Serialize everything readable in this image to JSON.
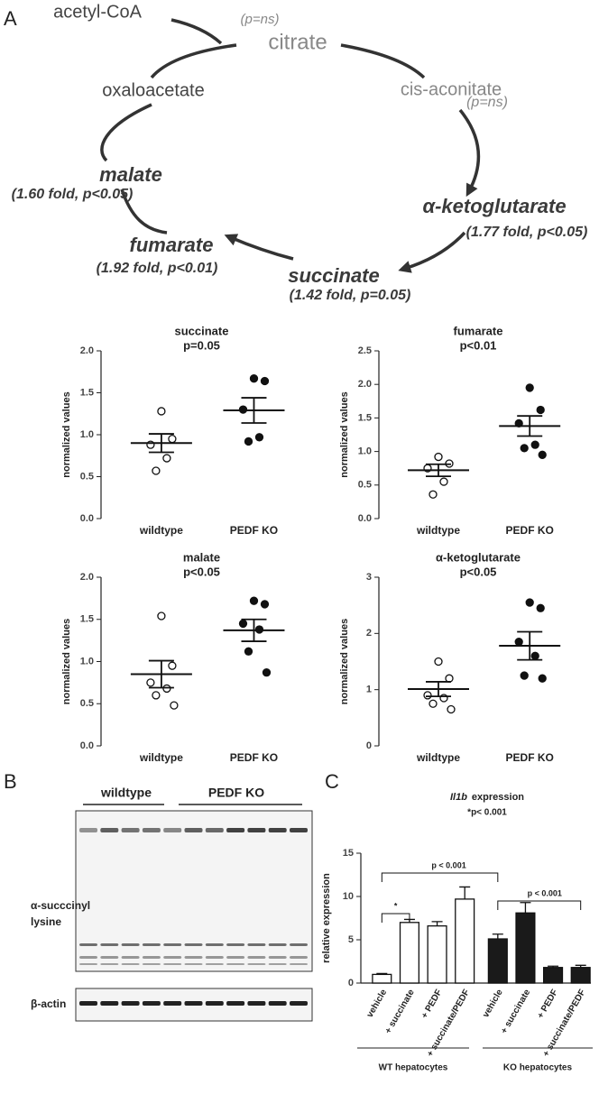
{
  "panel_labels": [
    "A",
    "B",
    "C"
  ],
  "diagram": {
    "acetyl_coa": "acetyl-CoA",
    "citrate_note": "(p=ns)",
    "citrate": "citrate",
    "cis_aconitate": "cis-aconitate",
    "cis_aconitate_note": "(p=ns)",
    "oxaloacetate": "oxaloacetate",
    "malate": "malate",
    "malate_note": "(1.60 fold, p<0.05)",
    "akg": "α-ketoglutarate",
    "akg_note": "(1.77 fold, p<0.05)",
    "fumarate": "fumarate",
    "fumarate_note": "(1.92 fold, p<0.01)",
    "succinate": "succinate",
    "succinate_note": "(1.42 fold, p=0.05)"
  },
  "blot": {
    "groups": [
      "wildtype",
      "PEDF KO"
    ],
    "row_label_1": "α-succcinyl",
    "row_label_2": "lysine",
    "loading_label": "β-actin"
  },
  "chart_data": [
    {
      "type": "dot",
      "title": "succinate",
      "subtitle": "p=0.05",
      "ylabel": "normalized values",
      "categories": [
        "wildtype",
        "PEDF KO"
      ],
      "groups": [
        {
          "values": [
            1.28,
            0.95,
            0.88,
            0.72,
            0.57
          ],
          "mean": 0.9,
          "sem": 0.11,
          "fill": "none"
        },
        {
          "values": [
            1.67,
            1.64,
            1.3,
            0.97,
            0.92
          ],
          "mean": 1.29,
          "sem": 0.15,
          "fill": "#111"
        }
      ],
      "ylim": [
        0,
        2
      ],
      "yticks": [
        {
          "value": 0,
          "label": "0.0"
        },
        0.5,
        {
          "value": 1,
          "label": "1.0"
        },
        1.5,
        {
          "value": 2,
          "label": "2.0"
        }
      ]
    },
    {
      "type": "dot",
      "title": "fumarate",
      "subtitle": "p<0.01",
      "ylabel": "normalized values",
      "categories": [
        "wildtype",
        "PEDF KO"
      ],
      "groups": [
        {
          "values": [
            0.92,
            0.82,
            0.75,
            0.55,
            0.36
          ],
          "mean": 0.72,
          "sem": 0.09,
          "fill": "none"
        },
        {
          "values": [
            1.95,
            1.62,
            1.42,
            1.1,
            1.05,
            0.95
          ],
          "mean": 1.38,
          "sem": 0.15,
          "fill": "#111"
        }
      ],
      "ylim": [
        0,
        2.5
      ],
      "yticks": [
        {
          "value": 0,
          "label": "0.0"
        },
        0.5,
        {
          "value": 1,
          "label": "1.0"
        },
        1.5,
        {
          "value": 2,
          "label": "2.0"
        },
        2.5
      ]
    },
    {
      "type": "dot",
      "title": "malate",
      "subtitle": "p<0.05",
      "ylabel": "normalized values",
      "categories": [
        "wildtype",
        "PEDF KO"
      ],
      "groups": [
        {
          "values": [
            1.54,
            0.95,
            0.75,
            0.68,
            0.6,
            0.48
          ],
          "mean": 0.85,
          "sem": 0.16,
          "fill": "none"
        },
        {
          "values": [
            1.72,
            1.68,
            1.45,
            1.38,
            1.12,
            0.87
          ],
          "mean": 1.37,
          "sem": 0.13,
          "fill": "#111"
        }
      ],
      "ylim": [
        0,
        2
      ],
      "yticks": [
        {
          "value": 0,
          "label": "0.0"
        },
        0.5,
        {
          "value": 1,
          "label": "1.0"
        },
        1.5,
        {
          "value": 2,
          "label": "2.0"
        }
      ]
    },
    {
      "type": "dot",
      "title": "α-ketoglutarate",
      "subtitle": "p<0.05",
      "ylabel": "normalized values",
      "categories": [
        "wildtype",
        "PEDF KO"
      ],
      "groups": [
        {
          "values": [
            1.5,
            1.2,
            0.9,
            0.85,
            0.75,
            0.65
          ],
          "mean": 1.01,
          "sem": 0.13,
          "fill": "none"
        },
        {
          "values": [
            2.55,
            2.45,
            1.85,
            1.6,
            1.25,
            1.2
          ],
          "mean": 1.78,
          "sem": 0.25,
          "fill": "#111"
        }
      ],
      "ylim": [
        0,
        3
      ],
      "yticks": [
        0,
        1,
        2,
        3
      ]
    },
    {
      "type": "bar",
      "title_gene": "Il1b",
      "title": "expression",
      "subtitle": "*p< 0.001",
      "ylabel": "relative expression",
      "categories": [
        "vehicle",
        "+ succinate",
        "+ PEDF",
        "+ succinate/PEDF",
        "vehicle",
        "+ succinate",
        "+ PEDF",
        "+ succinate/PEDF"
      ],
      "values": [
        1.0,
        7.0,
        6.6,
        9.7,
        5.1,
        8.1,
        1.8,
        1.8
      ],
      "errors": [
        0.1,
        0.35,
        0.5,
        1.4,
        0.55,
        1.2,
        0.15,
        0.25
      ],
      "colors": [
        "#fff",
        "#fff",
        "#fff",
        "#fff",
        "#1a1a1a",
        "#1a1a1a",
        "#1a1a1a",
        "#1a1a1a"
      ],
      "group_labels": [
        "WT hepatocytes",
        "KO hepatocytes"
      ],
      "annotations": [
        "*",
        "p < 0.001",
        "p < 0.001"
      ],
      "ylim": [
        0,
        15
      ],
      "yticks": [
        0,
        5,
        10,
        15
      ]
    }
  ]
}
